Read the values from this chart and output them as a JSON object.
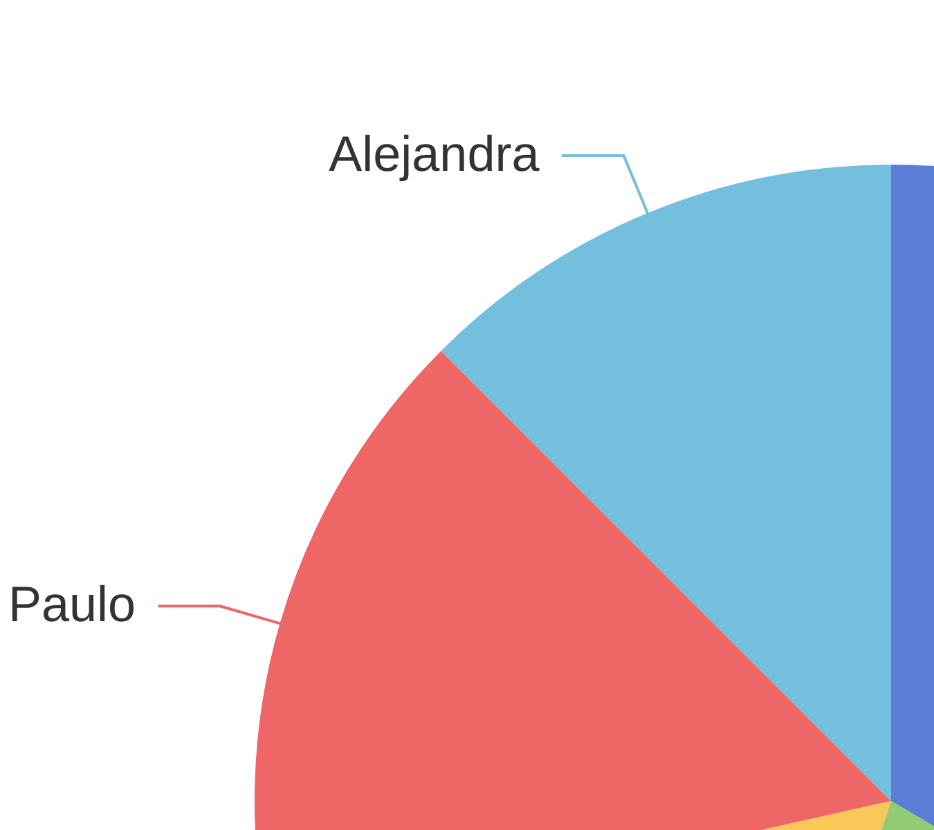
{
  "chart_data": {
    "type": "pie",
    "categories": [
      null,
      null,
      null,
      "Paulo",
      "Alejandra"
    ],
    "values": [
      33.5,
      21.7,
      16.3,
      16.0,
      12.5
    ],
    "colors": [
      "#5b7dd6",
      "#91cc75",
      "#fac858",
      "#ee6666",
      "#73bfdd"
    ]
  }
}
